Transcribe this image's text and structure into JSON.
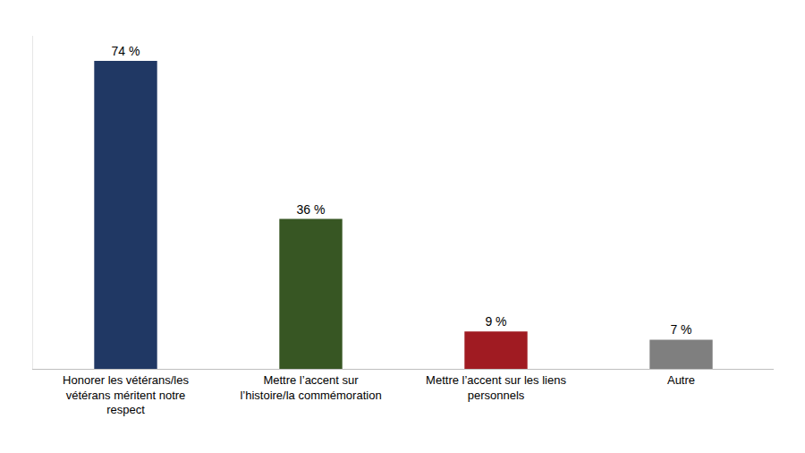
{
  "chart_data": {
    "type": "bar",
    "categories": [
      "Honorer les vétérans/les vétérans méritent notre respect",
      "Mettre l’accent sur l’histoire/la commémoration",
      "Mettre l’accent sur les liens personnels",
      "Autre"
    ],
    "values": [
      74,
      36,
      9,
      7
    ],
    "value_labels": [
      "74 %",
      "36 %",
      "9 %",
      "7 %"
    ],
    "colors": [
      "#203864",
      "#375623",
      "#a01b22",
      "#7f7f7f"
    ],
    "ylim": [
      0,
      80
    ],
    "grid": false,
    "data_labels": true,
    "tick_labels": "x"
  }
}
